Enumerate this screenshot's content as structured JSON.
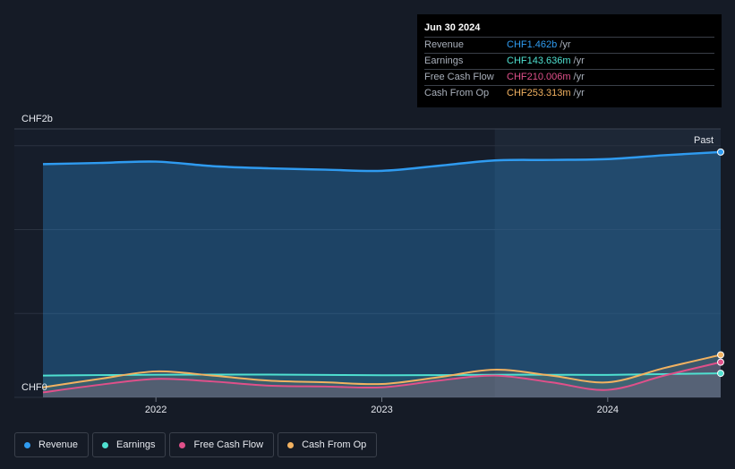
{
  "tooltip": {
    "date": "Jun 30 2024",
    "rows": [
      {
        "label": "Revenue",
        "value": "CHF1.462b",
        "unit": "/yr",
        "color": "#2f9bf0"
      },
      {
        "label": "Earnings",
        "value": "CHF143.636m",
        "unit": "/yr",
        "color": "#4fe0d0"
      },
      {
        "label": "Free Cash Flow",
        "value": "CHF210.006m",
        "unit": "/yr",
        "color": "#e0508a"
      },
      {
        "label": "Cash From Op",
        "value": "CHF253.313m",
        "unit": "/yr",
        "color": "#f2b261"
      }
    ]
  },
  "legend": [
    {
      "label": "Revenue",
      "color": "#2f9bf0"
    },
    {
      "label": "Earnings",
      "color": "#4fe0d0"
    },
    {
      "label": "Free Cash Flow",
      "color": "#e0508a"
    },
    {
      "label": "Cash From Op",
      "color": "#f2b261"
    }
  ],
  "chart_data": {
    "type": "area",
    "y_top_label": "CHF2b",
    "y_bottom_label": "CHF0",
    "ylim": [
      0,
      1.6
    ],
    "xlim": [
      2021.5,
      2024.5
    ],
    "x_ticks": [
      {
        "value": 2022,
        "label": "2022"
      },
      {
        "value": 2023,
        "label": "2023"
      },
      {
        "value": 2024,
        "label": "2024"
      }
    ],
    "past_label": "Past",
    "past_start": 2023.5,
    "series": [
      {
        "name": "Revenue",
        "color": "#2f9bf0",
        "x": [
          2021.5,
          2021.75,
          2022.0,
          2022.25,
          2022.5,
          2022.75,
          2023.0,
          2023.25,
          2023.5,
          2023.75,
          2024.0,
          2024.25,
          2024.5
        ],
        "y": [
          1.39,
          1.397,
          1.405,
          1.378,
          1.365,
          1.357,
          1.35,
          1.38,
          1.412,
          1.415,
          1.42,
          1.443,
          1.462
        ]
      },
      {
        "name": "Earnings",
        "color": "#4fe0d0",
        "x": [
          2021.5,
          2021.75,
          2022.0,
          2022.25,
          2022.5,
          2022.75,
          2023.0,
          2023.25,
          2023.5,
          2023.75,
          2024.0,
          2024.25,
          2024.5
        ],
        "y": [
          0.13,
          0.133,
          0.135,
          0.136,
          0.136,
          0.134,
          0.132,
          0.133,
          0.135,
          0.135,
          0.134,
          0.139,
          0.1436
        ]
      },
      {
        "name": "Free Cash Flow",
        "color": "#e0508a",
        "x": [
          2021.5,
          2021.75,
          2022.0,
          2022.25,
          2022.5,
          2022.75,
          2023.0,
          2023.25,
          2023.5,
          2023.75,
          2024.0,
          2024.25,
          2024.5
        ],
        "y": [
          0.03,
          0.075,
          0.11,
          0.095,
          0.07,
          0.065,
          0.06,
          0.1,
          0.13,
          0.09,
          0.045,
          0.13,
          0.21
        ]
      },
      {
        "name": "Cash From Op",
        "color": "#f2b261",
        "x": [
          2021.5,
          2021.75,
          2022.0,
          2022.25,
          2022.5,
          2022.75,
          2023.0,
          2023.25,
          2023.5,
          2023.75,
          2024.0,
          2024.25,
          2024.5
        ],
        "y": [
          0.06,
          0.11,
          0.155,
          0.13,
          0.1,
          0.09,
          0.08,
          0.12,
          0.165,
          0.13,
          0.09,
          0.175,
          0.2533
        ]
      }
    ]
  }
}
